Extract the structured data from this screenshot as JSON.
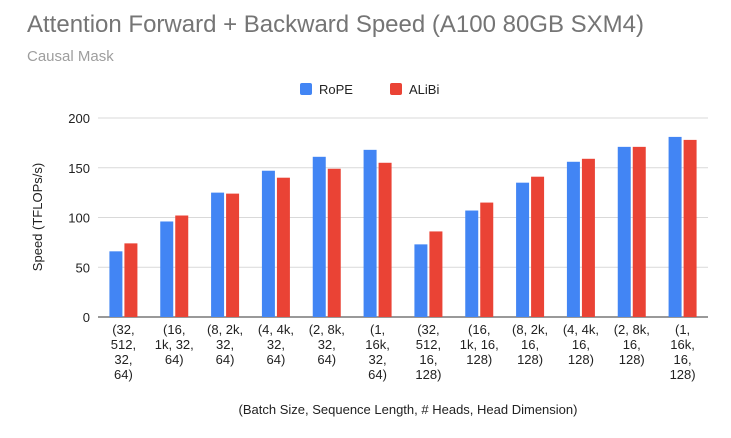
{
  "chart_data": {
    "type": "bar",
    "title": "Attention Forward + Backward Speed (A100 80GB SXM4)",
    "subtitle": "Causal Mask",
    "xlabel": "(Batch Size, Sequence Length, # Heads, Head Dimension)",
    "ylabel": "Speed (TFLOPs/s)",
    "ylim": [
      0,
      200
    ],
    "yticks": [
      0,
      50,
      100,
      150,
      200
    ],
    "grid": true,
    "legend_position": "top-center",
    "categories": [
      [
        "(32,",
        "512,",
        "32,",
        "64)"
      ],
      [
        "(16,",
        "1k, 32,",
        "64)"
      ],
      [
        "(8, 2k,",
        "32,",
        "64)"
      ],
      [
        "(4, 4k,",
        "32,",
        "64)"
      ],
      [
        "(2, 8k,",
        "32,",
        "64)"
      ],
      [
        "(1,",
        "16k,",
        "32,",
        "64)"
      ],
      [
        "(32,",
        "512,",
        "16,",
        "128)"
      ],
      [
        "(16,",
        "1k, 16,",
        "128)"
      ],
      [
        "(8, 2k,",
        "16,",
        "128)"
      ],
      [
        "(4, 4k,",
        "16,",
        "128)"
      ],
      [
        "(2, 8k,",
        "16,",
        "128)"
      ],
      [
        "(1,",
        "16k,",
        "16,",
        "128)"
      ]
    ],
    "series": [
      {
        "name": "RoPE",
        "color": "#4285f4",
        "values": [
          66,
          96,
          125,
          147,
          161,
          168,
          73,
          107,
          135,
          156,
          171,
          181
        ]
      },
      {
        "name": "ALiBi",
        "color": "#ea4335",
        "values": [
          74,
          102,
          124,
          140,
          149,
          155,
          86,
          115,
          141,
          159,
          171,
          178
        ]
      }
    ]
  }
}
